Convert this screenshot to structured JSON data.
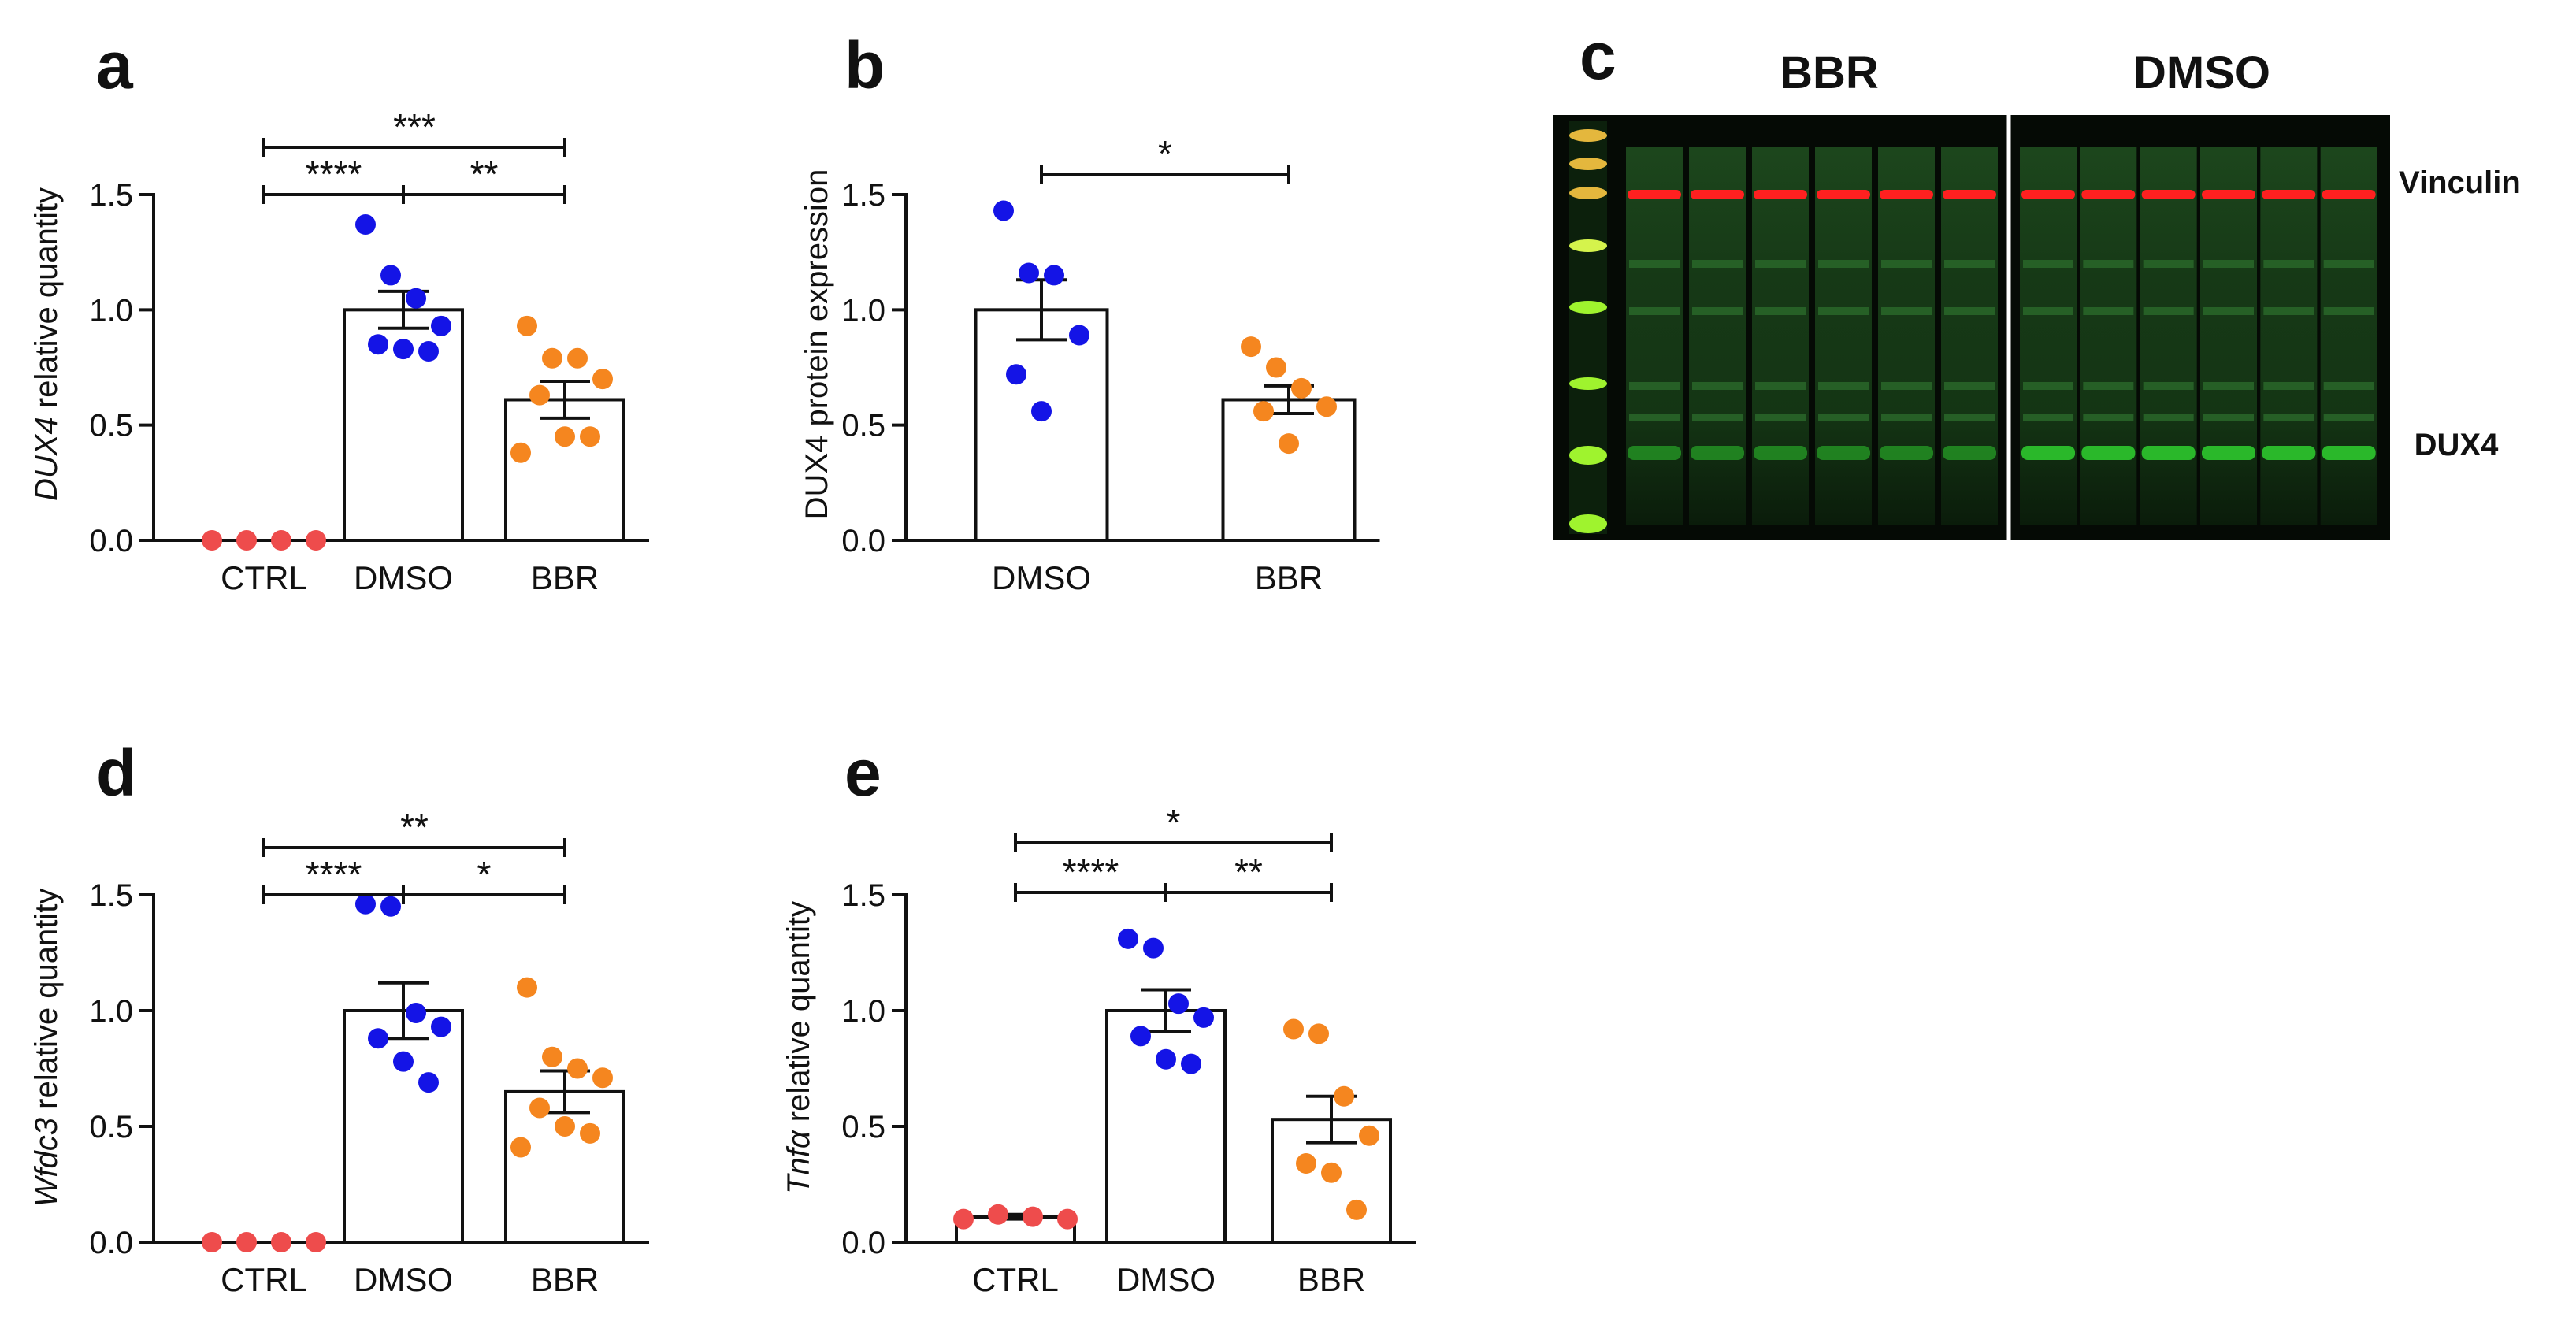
{
  "figure": {
    "colors": {
      "ctrl": "#ee4c4c",
      "dmso": "#1414e6",
      "bbr": "#f5861f",
      "axis": "#111111",
      "vinculin": "#ff2020",
      "dux4_band": "#2ec82e"
    }
  },
  "chart_data": [
    {
      "panel_letter": "a",
      "type": "bar",
      "ylabel_italic": "DUX4",
      "ylabel_rest": " relative quantity",
      "ylim": [
        0,
        1.5
      ],
      "yticks": [
        "0.0",
        "0.5",
        "1.0",
        "1.5"
      ],
      "categories": [
        "CTRL",
        "DMSO",
        "BBR"
      ],
      "values": [
        0.0,
        1.0,
        0.61
      ],
      "errors": [
        0.0,
        0.08,
        0.08
      ],
      "points": [
        [
          0.0,
          0.0,
          0.0,
          0.0
        ],
        [
          1.37,
          1.15,
          1.05,
          0.93,
          0.85,
          0.83,
          0.82
        ],
        [
          0.93,
          0.79,
          0.79,
          0.7,
          0.63,
          0.45,
          0.45,
          0.38
        ]
      ],
      "significance": [
        {
          "from": 0,
          "to": 2,
          "label": "***",
          "level": 0
        },
        {
          "from": 0,
          "to": 2,
          "label": "****",
          "label2": "**",
          "level": 1
        }
      ]
    },
    {
      "panel_letter": "b",
      "type": "bar",
      "ylabel_italic": "",
      "ylabel_rest": "DUX4 protein expression",
      "ylim": [
        0,
        1.5
      ],
      "yticks": [
        "0.0",
        "0.5",
        "1.0",
        "1.5"
      ],
      "categories": [
        "DMSO",
        "BBR"
      ],
      "values": [
        1.0,
        0.61
      ],
      "errors": [
        0.13,
        0.06
      ],
      "points": [
        [
          1.43,
          1.16,
          1.15,
          0.89,
          0.72,
          0.56
        ],
        [
          0.84,
          0.75,
          0.66,
          0.58,
          0.56,
          0.42
        ]
      ],
      "significance": [
        {
          "from": 0,
          "to": 1,
          "label": "*",
          "level": 0
        }
      ]
    },
    {
      "panel_letter": "d",
      "type": "bar",
      "ylabel_italic": "Wfdc3",
      "ylabel_rest": " relative quantity",
      "ylim": [
        0,
        1.5
      ],
      "yticks": [
        "0.0",
        "0.5",
        "1.0",
        "1.5"
      ],
      "categories": [
        "CTRL",
        "DMSO",
        "BBR"
      ],
      "values": [
        0.0,
        1.0,
        0.65
      ],
      "errors": [
        0.0,
        0.12,
        0.09
      ],
      "points": [
        [
          0.0,
          0.0,
          0.0,
          0.0
        ],
        [
          1.46,
          1.45,
          0.99,
          0.93,
          0.88,
          0.78,
          0.69
        ],
        [
          1.1,
          0.8,
          0.75,
          0.71,
          0.58,
          0.5,
          0.47,
          0.41
        ]
      ],
      "significance": [
        {
          "from": 0,
          "to": 2,
          "label": "**",
          "level": 0
        },
        {
          "from": 0,
          "to": 2,
          "label": "****",
          "label2": "*",
          "level": 1
        }
      ]
    },
    {
      "panel_letter": "e",
      "type": "bar",
      "ylabel_italic": "Tnfα",
      "ylabel_rest": " relative quantity",
      "ylim": [
        0,
        1.5
      ],
      "yticks": [
        "0.0",
        "0.5",
        "1.0",
        "1.5"
      ],
      "categories": [
        "CTRL",
        "DMSO",
        "BBR"
      ],
      "values": [
        0.11,
        1.0,
        0.53
      ],
      "errors": [
        0.01,
        0.09,
        0.1
      ],
      "points": [
        [
          0.1,
          0.12,
          0.11,
          0.1
        ],
        [
          1.31,
          1.27,
          1.03,
          0.97,
          0.89,
          0.79,
          0.77
        ],
        [
          0.92,
          0.9,
          0.63,
          0.46,
          0.34,
          0.3,
          0.14
        ]
      ],
      "significance": [
        {
          "from": 0,
          "to": 2,
          "label": "*",
          "level": 0
        },
        {
          "from": 0,
          "to": 2,
          "label": "****",
          "label2": "**",
          "level": 1
        }
      ]
    }
  ],
  "blot": {
    "panel_letter": "c",
    "group_labels": [
      "BBR",
      "DMSO"
    ],
    "band_labels": [
      "Vinculin",
      "DUX4"
    ],
    "lanes_per_group": 6
  }
}
